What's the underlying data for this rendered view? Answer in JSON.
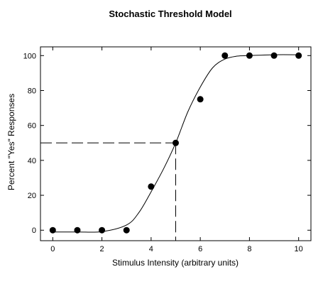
{
  "chart_data": {
    "type": "scatter",
    "title": "Stochastic Threshold Model",
    "xlabel": "Stimulus Intensity (arbitrary units)",
    "ylabel": "Percent \"Yes\" Responses",
    "xlim": [
      -0.5,
      10.5
    ],
    "ylim": [
      -6,
      105
    ],
    "xticks": [
      0,
      2,
      4,
      6,
      8,
      10
    ],
    "yticks": [
      0,
      20,
      40,
      60,
      80,
      100
    ],
    "grid": false,
    "series": [
      {
        "kind": "points",
        "x": [
          0,
          1,
          2,
          3,
          4,
          5,
          6,
          7,
          8,
          9,
          10
        ],
        "y": [
          0,
          0,
          0,
          0,
          25,
          50,
          75,
          100,
          100,
          100,
          100
        ],
        "color": "#000000"
      },
      {
        "kind": "fitted-curve",
        "x": [
          0,
          1,
          2,
          3,
          3.5,
          4,
          4.5,
          5,
          5.5,
          6,
          6.5,
          7,
          7.5,
          8,
          9,
          10
        ],
        "y": [
          -1,
          -1,
          -0.8,
          3,
          10,
          22,
          35,
          50,
          68,
          82,
          93,
          98,
          99.7,
          100,
          100.5,
          100.5
        ],
        "color": "#000000"
      }
    ],
    "threshold_marker": {
      "x": 5,
      "y": 50,
      "style": "dashed"
    }
  }
}
